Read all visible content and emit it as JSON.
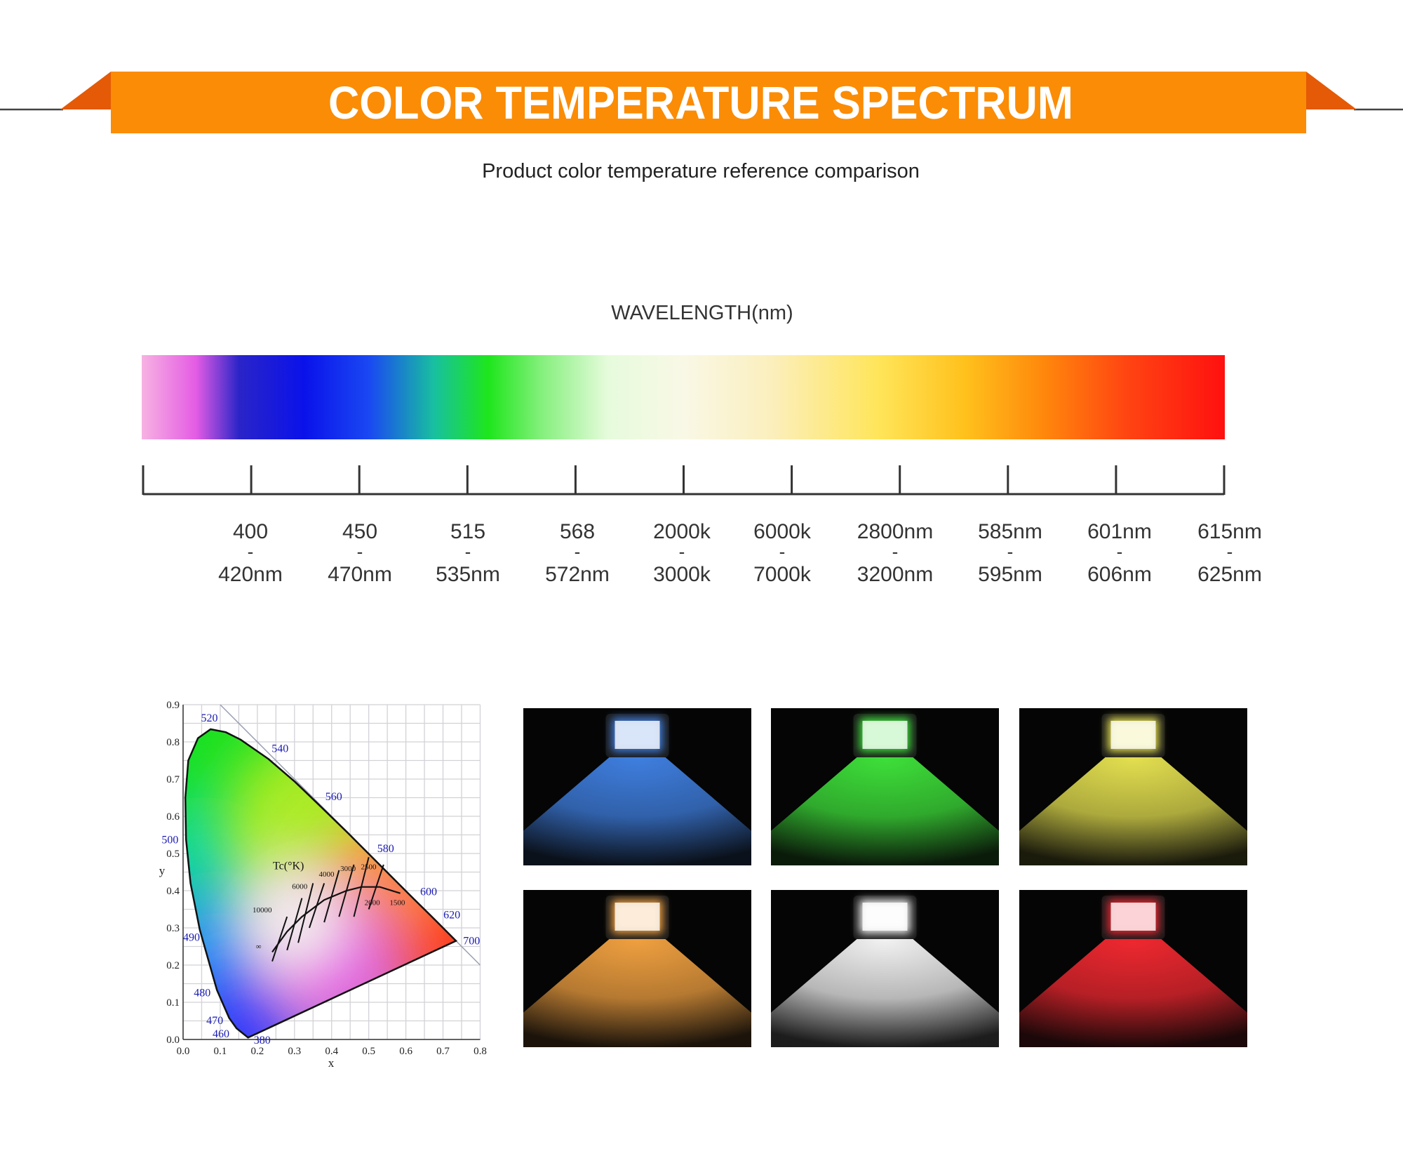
{
  "header": {
    "title": "COLOR TEMPERATURE SPECTRUM",
    "subtitle": "Product color temperature reference comparison"
  },
  "spectrum": {
    "label": "WAVELENGTH(nm)",
    "separator": "-",
    "ticks": [
      {
        "from": "400",
        "to": "420nm"
      },
      {
        "from": "450",
        "to": "470nm"
      },
      {
        "from": "515",
        "to": "535nm"
      },
      {
        "from": "568",
        "to": "572nm"
      },
      {
        "from": "2000k",
        "to": "3000k"
      },
      {
        "from": "6000k",
        "to": "7000k"
      },
      {
        "from": "2800nm",
        "to": "3200nm"
      },
      {
        "from": "585nm",
        "to": "595nm"
      },
      {
        "from": "601nm",
        "to": "606nm"
      },
      {
        "from": "615nm",
        "to": "625nm"
      }
    ]
  },
  "cie_diagram": {
    "x_label": "x",
    "y_label": "y",
    "x_ticks": [
      "0.0",
      "0.1",
      "0.2",
      "0.3",
      "0.4",
      "0.5",
      "0.6",
      "0.7",
      "0.8"
    ],
    "y_ticks": [
      "0.0",
      "0.1",
      "0.2",
      "0.3",
      "0.4",
      "0.5",
      "0.6",
      "0.7",
      "0.8",
      "0.9"
    ],
    "wavelength_labels": [
      "520",
      "540",
      "560",
      "580",
      "600",
      "620",
      "700",
      "380",
      "460",
      "470",
      "480",
      "490",
      "500"
    ],
    "temperature_title": "Tc(°K)",
    "temperature_labels": [
      "6000",
      "4000",
      "3000",
      "2500",
      "10000",
      "2000",
      "1500",
      "∞"
    ]
  }
}
